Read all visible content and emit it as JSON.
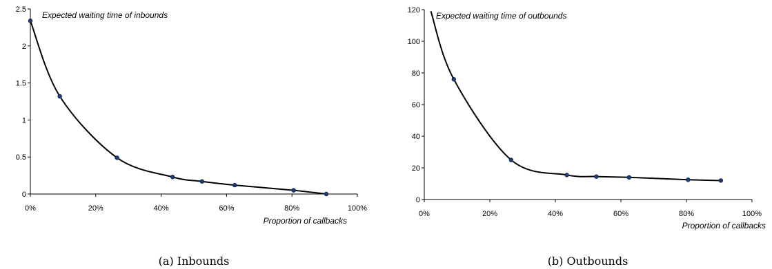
{
  "chart_data": [
    {
      "type": "line",
      "annotation": "Expected waiting time of inbounds",
      "xlabel": "Proportion of callbacks",
      "caption": "(a) Inbounds",
      "xlim": [
        0,
        1
      ],
      "ylim": [
        0,
        2.5
      ],
      "xticks": [
        "0%",
        "20%",
        "40%",
        "60%",
        "80%",
        "100%"
      ],
      "yticks": [
        "0",
        "0.5",
        "1",
        "1.5",
        "2",
        "2.5"
      ],
      "series": [
        {
          "x": [
            0.0,
            0.09,
            0.265,
            0.435,
            0.525,
            0.625,
            0.805,
            0.905
          ],
          "y": [
            2.34,
            1.32,
            0.49,
            0.23,
            0.17,
            0.12,
            0.05,
            0.0
          ]
        }
      ]
    },
    {
      "type": "line",
      "annotation": "Expected waiting time of outbounds",
      "xlabel": "Proportion of callbacks",
      "caption": "(b) Outbounds",
      "xlim": [
        0,
        1
      ],
      "ylim": [
        0,
        120
      ],
      "xticks": [
        "0%",
        "20%",
        "40%",
        "60%",
        "80%",
        "100%"
      ],
      "yticks": [
        "0",
        "20",
        "40",
        "60",
        "80",
        "100",
        "120"
      ],
      "series": [
        {
          "x": [
            0.09,
            0.265,
            0.435,
            0.525,
            0.625,
            0.805,
            0.905
          ],
          "y": [
            76,
            25,
            15.5,
            14.5,
            14,
            12.5,
            12
          ]
        }
      ]
    }
  ]
}
